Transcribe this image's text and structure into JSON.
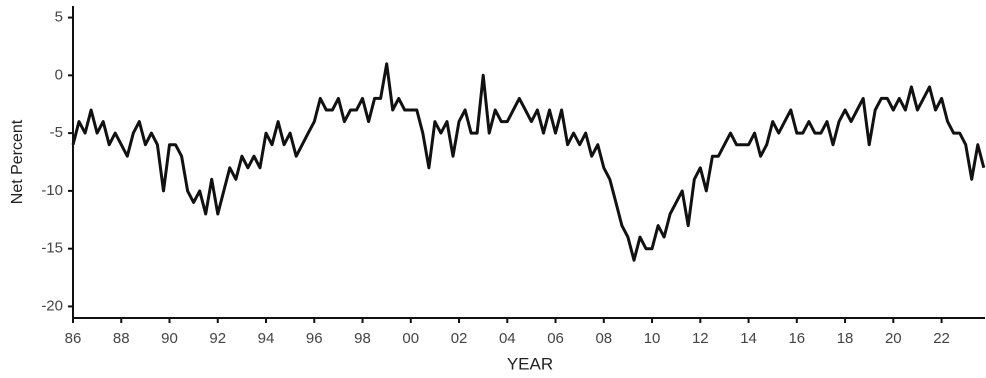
{
  "chart_data": {
    "type": "line",
    "x_label": "YEAR",
    "y_label": "Net Percent",
    "x": [
      1986,
      1986.25,
      1986.5,
      1986.75,
      1987,
      1987.25,
      1987.5,
      1987.75,
      1988,
      1988.25,
      1988.5,
      1988.75,
      1989,
      1989.25,
      1989.5,
      1989.75,
      1990,
      1990.25,
      1990.5,
      1990.75,
      1991,
      1991.25,
      1991.5,
      1991.75,
      1992,
      1992.25,
      1992.5,
      1992.75,
      1993,
      1993.25,
      1993.5,
      1993.75,
      1994,
      1994.25,
      1994.5,
      1994.75,
      1995,
      1995.25,
      1995.5,
      1995.75,
      1996,
      1996.25,
      1996.5,
      1996.75,
      1997,
      1997.25,
      1997.5,
      1997.75,
      1998,
      1998.25,
      1998.5,
      1998.75,
      1999,
      1999.25,
      1999.5,
      1999.75,
      2000,
      2000.25,
      2000.5,
      2000.75,
      2001,
      2001.25,
      2001.5,
      2001.75,
      2002,
      2002.25,
      2002.5,
      2002.75,
      2003,
      2003.25,
      2003.5,
      2003.75,
      2004,
      2004.25,
      2004.5,
      2004.75,
      2005,
      2005.25,
      2005.5,
      2005.75,
      2006,
      2006.25,
      2006.5,
      2006.75,
      2007,
      2007.25,
      2007.5,
      2007.75,
      2008,
      2008.25,
      2008.5,
      2008.75,
      2009,
      2009.25,
      2009.5,
      2009.75,
      2010,
      2010.25,
      2010.5,
      2010.75,
      2011,
      2011.25,
      2011.5,
      2011.75,
      2012,
      2012.25,
      2012.5,
      2012.75,
      2013,
      2013.25,
      2013.5,
      2013.75,
      2014,
      2014.25,
      2014.5,
      2014.75,
      2015,
      2015.25,
      2015.5,
      2015.75,
      2016,
      2016.25,
      2016.5,
      2016.75,
      2017,
      2017.25,
      2017.5,
      2017.75,
      2018,
      2018.25,
      2018.5,
      2018.75,
      2019,
      2019.25,
      2019.5,
      2019.75,
      2020,
      2020.25,
      2020.5,
      2020.75,
      2021,
      2021.25,
      2021.5,
      2021.75,
      2022,
      2022.25,
      2022.5,
      2022.75,
      2023,
      2023.25,
      2023.5,
      2023.75
    ],
    "series": [
      {
        "color": "#111111",
        "values": [
          -6,
          -4,
          -5,
          -3,
          -5,
          -4,
          -6,
          -5,
          -6,
          -7,
          -5,
          -4,
          -6,
          -5,
          -6,
          -10,
          -6,
          -6,
          -7,
          -10,
          -11,
          -10,
          -12,
          -9,
          -12,
          -10,
          -8,
          -9,
          -7,
          -8,
          -7,
          -8,
          -5,
          -6,
          -4,
          -6,
          -5,
          -7,
          -6,
          -5,
          -4,
          -2,
          -3,
          -3,
          -2,
          -4,
          -3,
          -3,
          -2,
          -4,
          -2,
          -2,
          1,
          -3,
          -2,
          -3,
          -3,
          -3,
          -5,
          -8,
          -4,
          -5,
          -4,
          -7,
          -4,
          -3,
          -5,
          -5,
          0,
          -5,
          -3,
          -4,
          -4,
          -3,
          -2,
          -3,
          -4,
          -3,
          -5,
          -3,
          -5,
          -3,
          -6,
          -5,
          -6,
          -5,
          -7,
          -6,
          -8,
          -9,
          -11,
          -13,
          -14,
          -16,
          -14,
          -15,
          -15,
          -13,
          -14,
          -12,
          -11,
          -10,
          -13,
          -9,
          -8,
          -10,
          -7,
          -7,
          -6,
          -5,
          -6,
          -6,
          -6,
          -5,
          -7,
          -6,
          -4,
          -5,
          -4,
          -3,
          -5,
          -5,
          -4,
          -5,
          -5,
          -4,
          -6,
          -4,
          -3,
          -4,
          -3,
          -2,
          -6,
          -3,
          -2,
          -2,
          -3,
          -2,
          -3,
          -1,
          -3,
          -2,
          -1,
          -3,
          -2,
          -4,
          -5,
          -5,
          -6,
          -9,
          -6,
          -8
        ]
      }
    ],
    "xlim": [
      1986,
      2023.8
    ],
    "ylim": [
      -21,
      6
    ],
    "xticks": [
      {
        "value": 1986,
        "label": "86"
      },
      {
        "value": 1988,
        "label": "88"
      },
      {
        "value": 1990,
        "label": "90"
      },
      {
        "value": 1992,
        "label": "92"
      },
      {
        "value": 1994,
        "label": "94"
      },
      {
        "value": 1996,
        "label": "96"
      },
      {
        "value": 1998,
        "label": "98"
      },
      {
        "value": 2000,
        "label": "00"
      },
      {
        "value": 2002,
        "label": "02"
      },
      {
        "value": 2004,
        "label": "04"
      },
      {
        "value": 2006,
        "label": "06"
      },
      {
        "value": 2008,
        "label": "08"
      },
      {
        "value": 2010,
        "label": "10"
      },
      {
        "value": 2012,
        "label": "12"
      },
      {
        "value": 2014,
        "label": "14"
      },
      {
        "value": 2016,
        "label": "16"
      },
      {
        "value": 2018,
        "label": "18"
      },
      {
        "value": 2020,
        "label": "20"
      },
      {
        "value": 2022,
        "label": "22"
      }
    ],
    "yticks": [
      -20,
      -15,
      -10,
      -5,
      0,
      5
    ],
    "grid": false
  }
}
